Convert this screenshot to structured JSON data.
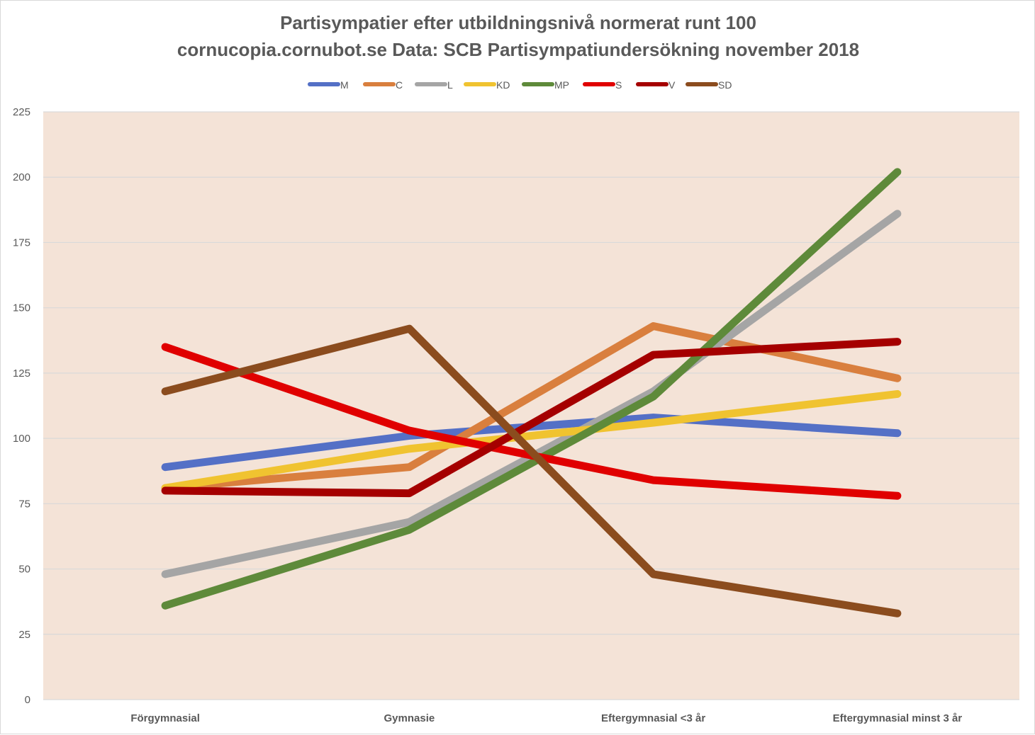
{
  "chart_data": {
    "type": "line",
    "title": "Partisympatier efter utbildningsnivå normerat runt 100",
    "subtitle": "cornucopia.cornubot.se Data: SCB Partisympatiundersökning november 2018",
    "xlabel": "",
    "ylabel": "",
    "categories": [
      "Förgymnasial",
      "Gymnasie",
      "Eftergymnasial <3 år",
      "Eftergymnasial minst 3 år"
    ],
    "ylim": [
      0,
      225
    ],
    "yticks": [
      0,
      25,
      50,
      75,
      100,
      125,
      150,
      175,
      200,
      225
    ],
    "grid": true,
    "legend_position": "top",
    "plot_background": "#f4e3d7",
    "series": [
      {
        "name": "M",
        "color": "#5470c6",
        "values": [
          89,
          101,
          108,
          102
        ]
      },
      {
        "name": "C",
        "color": "#d97f3e",
        "values": [
          81,
          89,
          143,
          123
        ]
      },
      {
        "name": "L",
        "color": "#a5a5a5",
        "values": [
          48,
          68,
          118,
          186
        ]
      },
      {
        "name": "KD",
        "color": "#f0c330",
        "values": [
          81,
          96,
          106,
          117
        ]
      },
      {
        "name": "MP",
        "color": "#5e8a3a",
        "values": [
          36,
          65,
          116,
          202
        ]
      },
      {
        "name": "S",
        "color": "#e00000",
        "values": [
          135,
          103,
          84,
          78
        ]
      },
      {
        "name": "V",
        "color": "#a50000",
        "values": [
          80,
          79,
          132,
          137
        ]
      },
      {
        "name": "SD",
        "color": "#8b4c1e",
        "values": [
          118,
          142,
          48,
          33
        ]
      }
    ]
  }
}
